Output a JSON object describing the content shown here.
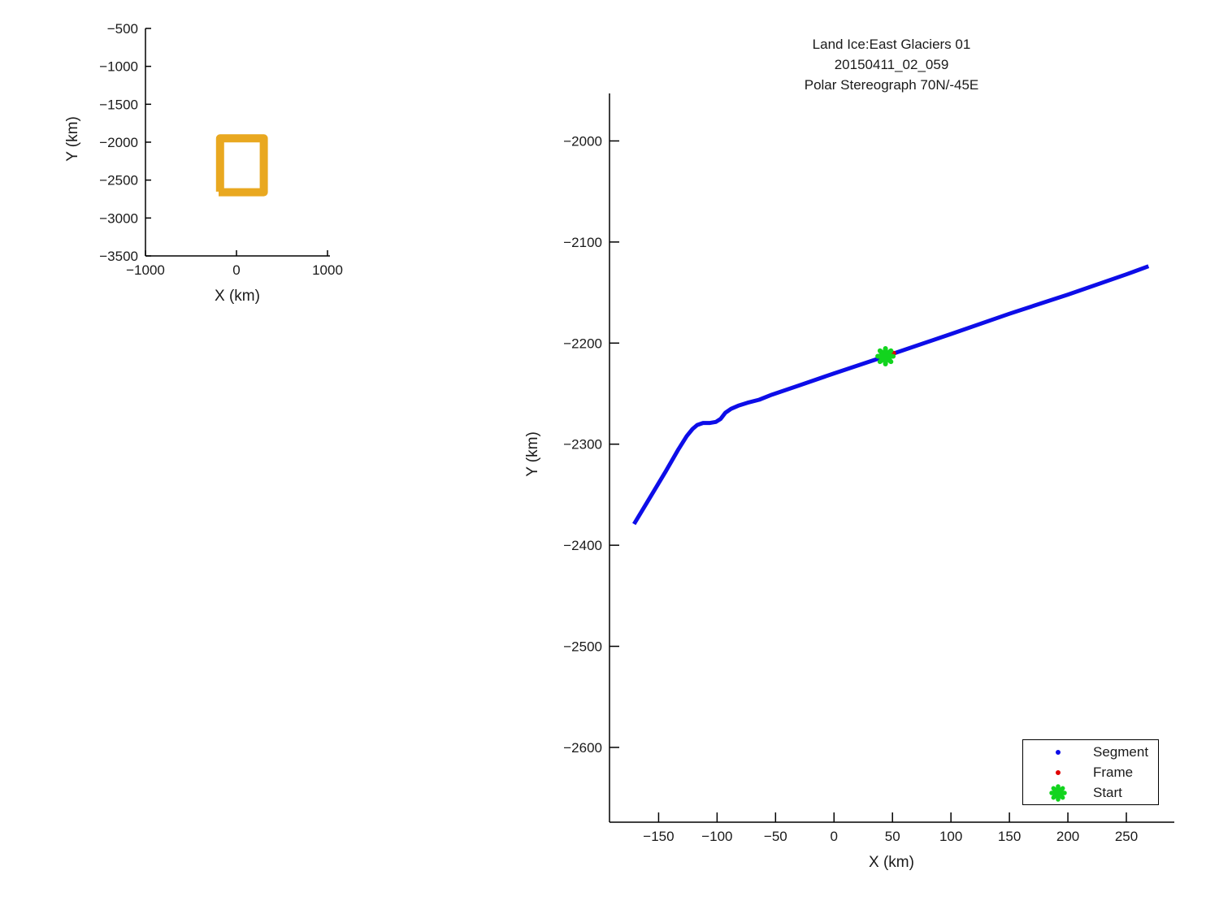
{
  "figure": {
    "background": "#ffffff",
    "text_color": "#1a1a1a",
    "spine_color": "#000000"
  },
  "chart_data": [
    {
      "id": "coverage-overview",
      "type": "line",
      "title": "",
      "xlabel": "X (km)",
      "ylabel": "Y (km)",
      "xlim": [
        -1000,
        1000
      ],
      "ylim": [
        -3500,
        -500
      ],
      "xticks": [
        -1000,
        0,
        1000
      ],
      "yticks": [
        -500,
        -1000,
        -1500,
        -2000,
        -2500,
        -3000,
        -3500
      ],
      "grid": false,
      "legend": null,
      "series": [
        {
          "name": "segment-extent-box",
          "color": "#E9A820",
          "linewidth": 10,
          "x": [
            -180,
            -180,
            300,
            300,
            -196
          ],
          "y": [
            -2652,
            -1950,
            -1950,
            -2660,
            -2660
          ]
        }
      ]
    },
    {
      "id": "segment-trajectory",
      "type": "line",
      "title_lines": [
        "Land Ice:East Glaciers 01",
        "20150411_02_059",
        "Polar Stereograph 70N/-45E"
      ],
      "xlabel": "X (km)",
      "ylabel": "Y (km)",
      "xlim": [
        -192,
        291
      ],
      "ylim": [
        -2674,
        -1953
      ],
      "xticks": [
        -150,
        -100,
        -50,
        0,
        50,
        100,
        150,
        200,
        250
      ],
      "yticks": [
        -2000,
        -2100,
        -2200,
        -2300,
        -2400,
        -2500,
        -2600
      ],
      "grid": false,
      "series": [
        {
          "name": "Segment",
          "color": "#0D0DE8",
          "linewidth": 5,
          "x": [
            -171,
            -158,
            -144,
            -133,
            -126,
            -121,
            -117,
            -112,
            -106,
            -101,
            -97,
            -93,
            -88,
            -82,
            -74,
            -64,
            -53,
            -30,
            0,
            44,
            100,
            150,
            200,
            250,
            269
          ],
          "y": [
            -2379,
            -2354,
            -2327,
            -2305,
            -2292,
            -2285,
            -2281,
            -2279,
            -2279,
            -2278,
            -2275,
            -2269,
            -2265,
            -2262,
            -2259,
            -2256,
            -2251,
            -2242,
            -2230,
            -2213,
            -2191,
            -2171,
            -2152,
            -2132,
            -2124
          ]
        }
      ],
      "markers": [
        {
          "name": "Frame",
          "shape": "dot",
          "color": "#E00000",
          "x": 51,
          "y": -2210,
          "size": 6
        },
        {
          "name": "Start",
          "shape": "asterisk",
          "color": "#12D41E",
          "x": 44,
          "y": -2213,
          "size": 19
        }
      ],
      "legend": {
        "position": "bottom-right",
        "entries": [
          {
            "label": "Segment",
            "marker": "dot",
            "color": "#0D0DE8"
          },
          {
            "label": "Frame",
            "marker": "dot",
            "color": "#E00000"
          },
          {
            "label": "Start",
            "marker": "asterisk",
            "color": "#12D41E"
          }
        ]
      }
    }
  ]
}
